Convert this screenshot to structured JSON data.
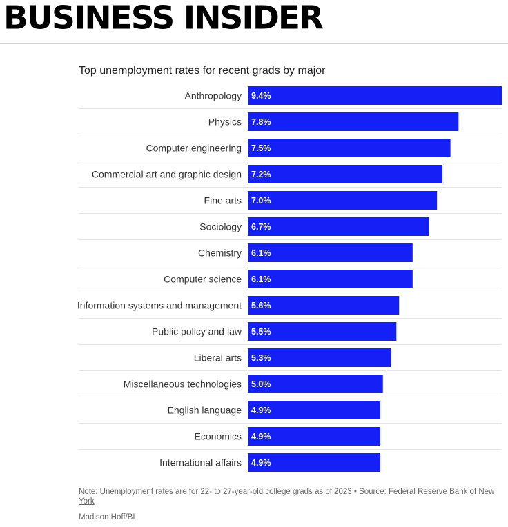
{
  "brand": {
    "name": "BUSINESS INSIDER"
  },
  "colors": {
    "bar": "#1520f7",
    "bar_label": "#ffffff",
    "divider": "#e4e4e4",
    "text": "#333333"
  },
  "chart_data": {
    "type": "bar",
    "orientation": "horizontal",
    "title": "Top unemployment rates for recent grads by major",
    "xlabel": "",
    "ylabel": "",
    "xlim": [
      0,
      9.4
    ],
    "grid": false,
    "categories": [
      "Anthropology",
      "Physics",
      "Computer engineering",
      "Commercial art and graphic design",
      "Fine arts",
      "Sociology",
      "Chemistry",
      "Computer science",
      "Information systems and management",
      "Public policy and law",
      "Liberal arts",
      "Miscellaneous technologies",
      "English language",
      "Economics",
      "International affairs"
    ],
    "values": [
      9.4,
      7.8,
      7.5,
      7.2,
      7.0,
      6.7,
      6.1,
      6.1,
      5.6,
      5.5,
      5.3,
      5.0,
      4.9,
      4.9,
      4.9
    ],
    "data_labels": [
      "9.4%",
      "7.8%",
      "7.5%",
      "7.2%",
      "7.0%",
      "6.7%",
      "6.1%",
      "6.1%",
      "5.6%",
      "5.5%",
      "5.3%",
      "5.0%",
      "4.9%",
      "4.9%",
      "4.9%"
    ]
  },
  "footer": {
    "note_prefix": "Note: Unemployment rates are for 22- to 27-year-old college grads as of 2023 • Source: ",
    "source_link": "Federal Reserve Bank of New York",
    "credit": "Madison Hoff/BI"
  }
}
